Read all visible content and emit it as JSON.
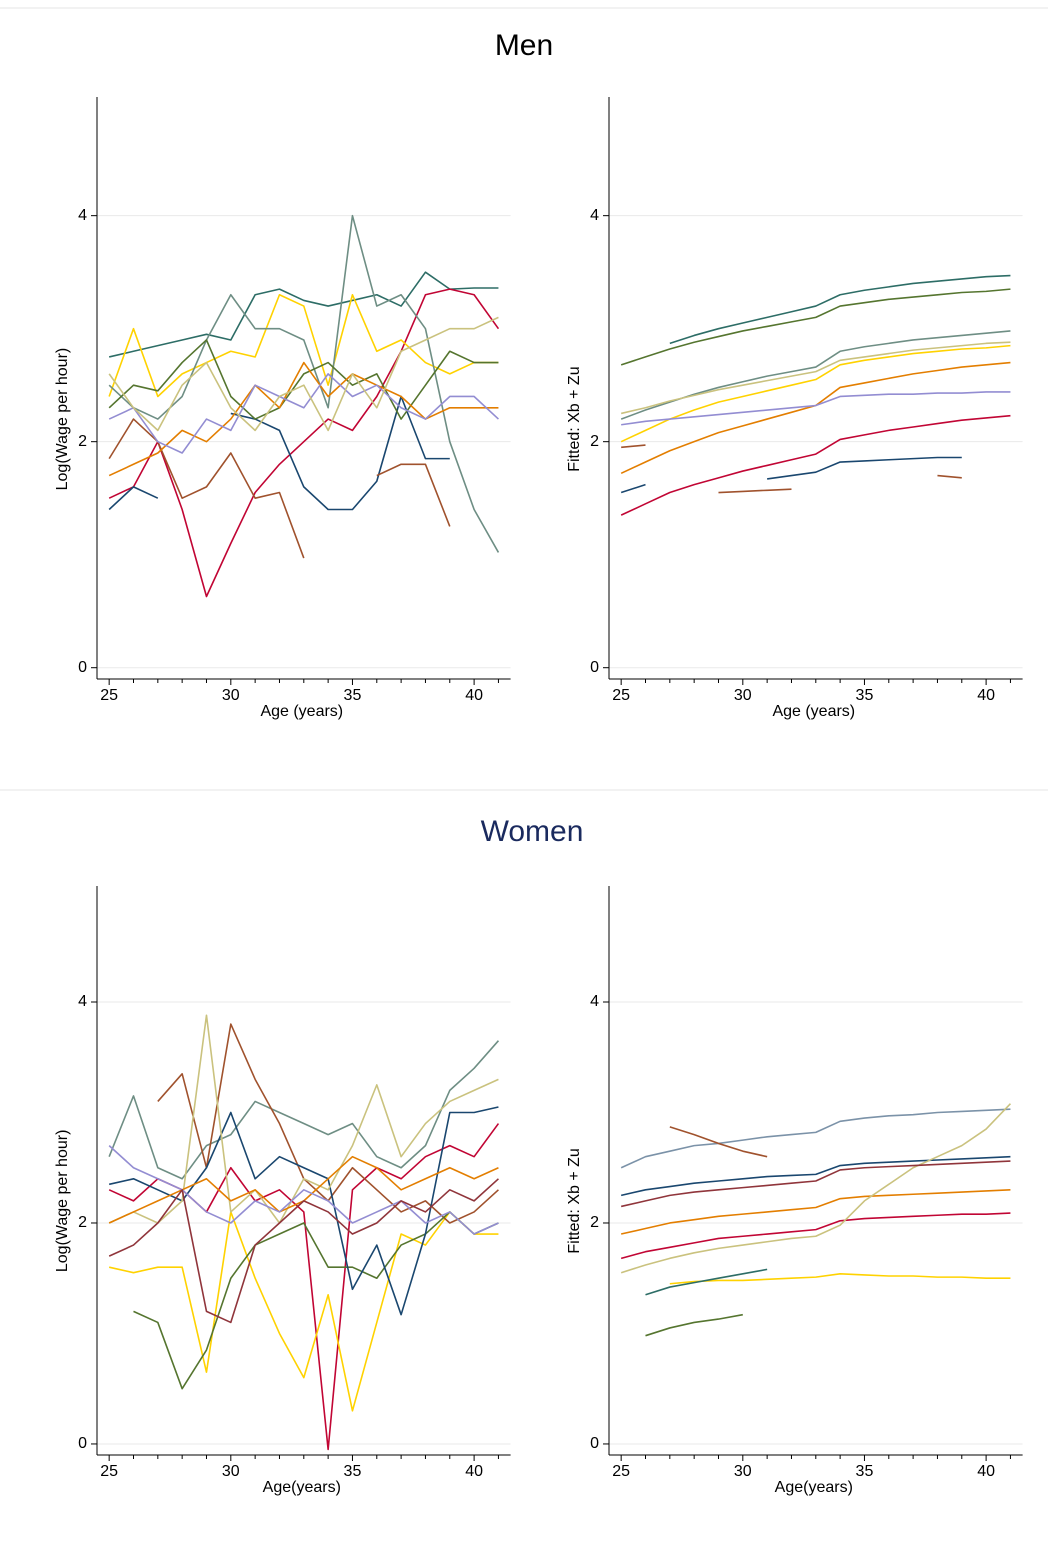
{
  "sections": [
    {
      "title": "Men"
    },
    {
      "title": "Women"
    }
  ],
  "chart_data": [
    {
      "type": "line",
      "x_label": "Age (years)",
      "y_label": "Log(Wage per hour)",
      "x": [
        25,
        26,
        27,
        28,
        29,
        30,
        31,
        32,
        33,
        34,
        35,
        36,
        37,
        38,
        39,
        40,
        41
      ],
      "xlim": [
        24.5,
        41.5
      ],
      "xticks": [
        25,
        30,
        35,
        40
      ],
      "xminorticks": [
        26,
        27,
        28,
        29,
        31,
        32,
        33,
        34,
        36,
        37,
        38,
        39,
        41
      ],
      "ylim": [
        -0.1,
        5.05
      ],
      "yticks": [
        0,
        2,
        4
      ],
      "grid": true,
      "series": [
        {
          "color": "#2d6d66",
          "values": [
            2.75,
            2.8,
            2.85,
            2.9,
            2.95,
            2.9,
            3.3,
            3.35,
            3.25,
            3.2,
            3.25,
            3.3,
            3.2,
            3.5,
            3.35,
            3.36,
            3.36
          ]
        },
        {
          "color": "#c10534",
          "values": [
            1.5,
            1.6,
            2.0,
            1.4,
            0.63,
            1.1,
            1.55,
            1.8,
            2.0,
            2.2,
            2.1,
            2.4,
            2.8,
            3.3,
            3.35,
            3.3,
            3.0
          ]
        },
        {
          "color": "#ffd200",
          "values": [
            2.4,
            3.0,
            2.4,
            2.6,
            2.7,
            2.8,
            2.75,
            3.3,
            3.2,
            2.5,
            3.3,
            2.8,
            2.9,
            2.7,
            2.6,
            2.7,
            2.7
          ]
        },
        {
          "color": "#6e8e84",
          "values": [
            2.5,
            2.3,
            2.2,
            2.4,
            2.9,
            3.3,
            3.0,
            3.0,
            2.9,
            2.3,
            4.0,
            3.2,
            3.3,
            3.0,
            2.0,
            1.4,
            1.02
          ]
        },
        {
          "color": "#1a476f",
          "values": [
            1.4,
            1.6,
            1.5,
            null,
            null,
            2.25,
            2.2,
            2.1,
            1.6,
            1.4,
            1.4,
            1.65,
            2.4,
            1.85,
            1.85,
            null,
            null
          ]
        },
        {
          "color": "#a0522d",
          "values": [
            1.85,
            2.2,
            2.0,
            1.5,
            1.6,
            1.9,
            1.5,
            1.55,
            0.97,
            null,
            null,
            1.7,
            1.8,
            1.8,
            1.25,
            null,
            null
          ]
        },
        {
          "color": "#55752f",
          "values": [
            2.3,
            2.5,
            2.45,
            2.7,
            2.9,
            2.4,
            2.2,
            2.3,
            2.6,
            2.7,
            2.5,
            2.6,
            2.2,
            2.5,
            2.8,
            2.7,
            2.7
          ]
        },
        {
          "color": "#e37e00",
          "values": [
            1.7,
            1.8,
            1.9,
            2.1,
            2.0,
            2.2,
            2.5,
            2.3,
            2.7,
            2.4,
            2.6,
            2.5,
            2.4,
            2.2,
            2.3,
            2.3,
            2.3
          ]
        },
        {
          "color": "#938dd2",
          "values": [
            2.2,
            2.3,
            2.0,
            1.9,
            2.2,
            2.1,
            2.5,
            2.4,
            2.3,
            2.6,
            2.4,
            2.5,
            2.3,
            2.2,
            2.4,
            2.4,
            2.2
          ]
        },
        {
          "color": "#cac27e",
          "values": [
            2.6,
            2.3,
            2.1,
            2.5,
            2.7,
            2.3,
            2.1,
            2.4,
            2.5,
            2.1,
            2.6,
            2.3,
            2.8,
            2.9,
            3.0,
            3.0,
            3.1
          ]
        }
      ]
    },
    {
      "type": "line",
      "x_label": "Age (years)",
      "y_label": "Fitted: Xb + Zu",
      "x": [
        25,
        26,
        27,
        28,
        29,
        30,
        31,
        32,
        33,
        34,
        35,
        36,
        37,
        38,
        39,
        40,
        41
      ],
      "xlim": [
        24.5,
        41.5
      ],
      "xticks": [
        25,
        30,
        35,
        40
      ],
      "xminorticks": [
        26,
        27,
        28,
        29,
        31,
        32,
        33,
        34,
        36,
        37,
        38,
        39,
        41
      ],
      "ylim": [
        -0.1,
        5.05
      ],
      "yticks": [
        0,
        2,
        4
      ],
      "grid": true,
      "series": [
        {
          "color": "#2d6d66",
          "values": [
            null,
            null,
            2.87,
            2.94,
            3.0,
            3.05,
            3.1,
            3.15,
            3.2,
            3.3,
            3.34,
            3.37,
            3.4,
            3.42,
            3.44,
            3.46,
            3.47
          ]
        },
        {
          "color": "#c10534",
          "values": [
            1.35,
            1.45,
            1.55,
            1.62,
            1.68,
            1.74,
            1.79,
            1.84,
            1.89,
            2.02,
            2.06,
            2.1,
            2.13,
            2.16,
            2.19,
            2.21,
            2.23
          ]
        },
        {
          "color": "#ffd200",
          "values": [
            2.0,
            2.1,
            2.2,
            2.28,
            2.35,
            2.4,
            2.45,
            2.5,
            2.55,
            2.68,
            2.72,
            2.75,
            2.78,
            2.8,
            2.82,
            2.83,
            2.85
          ]
        },
        {
          "color": "#6e8e84",
          "values": [
            2.2,
            2.28,
            2.35,
            2.42,
            2.48,
            2.53,
            2.58,
            2.62,
            2.66,
            2.8,
            2.84,
            2.87,
            2.9,
            2.92,
            2.94,
            2.96,
            2.98
          ]
        },
        {
          "color": "#1a476f",
          "values": [
            1.55,
            1.62,
            null,
            null,
            null,
            null,
            1.67,
            1.7,
            1.73,
            1.82,
            1.83,
            1.84,
            1.85,
            1.86,
            1.86,
            null,
            null
          ]
        },
        {
          "color": "#a0522d",
          "values": [
            1.95,
            1.97,
            null,
            null,
            1.55,
            1.56,
            1.57,
            1.58,
            null,
            null,
            null,
            null,
            null,
            1.7,
            1.68,
            null,
            null
          ]
        },
        {
          "color": "#55752f",
          "values": [
            2.68,
            2.75,
            2.82,
            2.88,
            2.93,
            2.98,
            3.02,
            3.06,
            3.1,
            3.2,
            3.23,
            3.26,
            3.28,
            3.3,
            3.32,
            3.33,
            3.35
          ]
        },
        {
          "color": "#e37e00",
          "values": [
            1.72,
            1.82,
            1.92,
            2.0,
            2.08,
            2.14,
            2.2,
            2.26,
            2.32,
            2.48,
            2.52,
            2.56,
            2.6,
            2.63,
            2.66,
            2.68,
            2.7
          ]
        },
        {
          "color": "#938dd2",
          "values": [
            2.15,
            2.18,
            2.2,
            2.22,
            2.24,
            2.26,
            2.28,
            2.3,
            2.32,
            2.4,
            2.41,
            2.42,
            2.42,
            2.43,
            2.43,
            2.44,
            2.44
          ]
        },
        {
          "color": "#cac27e",
          "values": [
            2.25,
            2.3,
            2.36,
            2.41,
            2.46,
            2.5,
            2.54,
            2.58,
            2.62,
            2.72,
            2.75,
            2.78,
            2.81,
            2.83,
            2.85,
            2.87,
            2.88
          ]
        }
      ]
    },
    {
      "type": "line",
      "x_label": "Age(years)",
      "y_label": "Log(Wage per hour)",
      "x": [
        25,
        26,
        27,
        28,
        29,
        30,
        31,
        32,
        33,
        34,
        35,
        36,
        37,
        38,
        39,
        40,
        41
      ],
      "xlim": [
        24.5,
        41.5
      ],
      "xticks": [
        25,
        30,
        35,
        40
      ],
      "xminorticks": [
        26,
        27,
        28,
        29,
        31,
        32,
        33,
        34,
        36,
        37,
        38,
        39,
        41
      ],
      "ylim": [
        -0.1,
        5.05
      ],
      "yticks": [
        0,
        2,
        4
      ],
      "grid": true,
      "series": [
        {
          "color": "#6e8e84",
          "values": [
            2.6,
            3.15,
            2.5,
            2.4,
            2.7,
            2.8,
            3.1,
            3.0,
            2.9,
            2.8,
            2.9,
            2.6,
            2.5,
            2.7,
            3.2,
            3.4,
            3.65
          ]
        },
        {
          "color": "#c10534",
          "values": [
            2.3,
            2.2,
            2.4,
            2.3,
            2.1,
            2.5,
            2.2,
            2.3,
            2.1,
            -0.05,
            2.3,
            2.5,
            2.4,
            2.6,
            2.7,
            2.6,
            2.9
          ]
        },
        {
          "color": "#ffd200",
          "values": [
            1.6,
            1.55,
            1.6,
            1.6,
            0.65,
            2.1,
            1.5,
            1.0,
            0.6,
            1.35,
            0.3,
            1.1,
            1.9,
            1.8,
            2.1,
            1.9,
            1.9
          ]
        },
        {
          "color": "#a0522d",
          "values": [
            null,
            null,
            3.1,
            3.35,
            2.5,
            3.8,
            3.3,
            2.9,
            2.4,
            2.2,
            2.5,
            2.3,
            2.1,
            2.2,
            2.0,
            2.1,
            2.3
          ]
        },
        {
          "color": "#55752f",
          "values": [
            null,
            1.2,
            1.1,
            0.5,
            0.85,
            1.5,
            1.8,
            1.9,
            2.0,
            1.6,
            1.6,
            1.5,
            1.8,
            1.9,
            2.1,
            1.9,
            2.0
          ]
        },
        {
          "color": "#1a476f",
          "values": [
            2.35,
            2.4,
            2.3,
            2.2,
            2.5,
            3.0,
            2.4,
            2.6,
            2.5,
            2.4,
            1.4,
            1.8,
            1.17,
            1.9,
            3.0,
            3.0,
            3.05
          ]
        },
        {
          "color": "#cac27e",
          "values": [
            2.0,
            2.1,
            2.0,
            2.2,
            3.88,
            2.1,
            2.3,
            2.0,
            2.4,
            2.3,
            2.7,
            3.25,
            2.6,
            2.9,
            3.1,
            3.2,
            3.3
          ]
        },
        {
          "color": "#e37e00",
          "values": [
            2.0,
            2.1,
            2.2,
            2.3,
            2.4,
            2.2,
            2.3,
            2.1,
            2.2,
            2.4,
            2.6,
            2.5,
            2.3,
            2.4,
            2.5,
            2.4,
            2.5
          ]
        },
        {
          "color": "#938dd2",
          "values": [
            2.7,
            2.5,
            2.4,
            2.3,
            2.1,
            2.0,
            2.2,
            2.1,
            2.3,
            2.2,
            2.0,
            2.1,
            2.2,
            2.0,
            2.1,
            1.9,
            2.0
          ]
        },
        {
          "color": "#90353b",
          "values": [
            1.7,
            1.8,
            2.0,
            2.3,
            1.2,
            1.1,
            1.8,
            2.0,
            2.2,
            2.1,
            1.9,
            2.0,
            2.2,
            2.1,
            2.3,
            2.2,
            2.4
          ]
        }
      ]
    },
    {
      "type": "line",
      "x_label": "Age(years)",
      "y_label": "Fitted: Xb + Zu",
      "x": [
        25,
        26,
        27,
        28,
        29,
        30,
        31,
        32,
        33,
        34,
        35,
        36,
        37,
        38,
        39,
        40,
        41
      ],
      "xlim": [
        24.5,
        41.5
      ],
      "xticks": [
        25,
        30,
        35,
        40
      ],
      "xminorticks": [
        26,
        27,
        28,
        29,
        31,
        32,
        33,
        34,
        36,
        37,
        38,
        39,
        41
      ],
      "ylim": [
        -0.1,
        5.05
      ],
      "yticks": [
        0,
        2,
        4
      ],
      "grid": true,
      "series": [
        {
          "color": "#7b92a8",
          "values": [
            2.5,
            2.6,
            2.65,
            2.7,
            2.72,
            2.75,
            2.78,
            2.8,
            2.82,
            2.92,
            2.95,
            2.97,
            2.98,
            3.0,
            3.01,
            3.02,
            3.03
          ]
        },
        {
          "color": "#ffd200",
          "values": [
            null,
            null,
            1.45,
            1.47,
            1.48,
            1.48,
            1.49,
            1.5,
            1.51,
            1.54,
            1.53,
            1.52,
            1.52,
            1.51,
            1.51,
            1.5,
            1.5
          ]
        },
        {
          "color": "#55752f",
          "values": [
            null,
            0.98,
            1.05,
            1.1,
            1.13,
            1.17,
            null,
            null,
            null,
            null,
            null,
            null,
            null,
            null,
            null,
            null,
            null
          ]
        },
        {
          "color": "#c10534",
          "values": [
            1.68,
            1.74,
            1.78,
            1.82,
            1.86,
            1.88,
            1.9,
            1.92,
            1.94,
            2.02,
            2.04,
            2.05,
            2.06,
            2.07,
            2.08,
            2.08,
            2.09
          ]
        },
        {
          "color": "#1a476f",
          "values": [
            2.25,
            2.3,
            2.33,
            2.36,
            2.38,
            2.4,
            2.42,
            2.43,
            2.44,
            2.52,
            2.54,
            2.55,
            2.56,
            2.57,
            2.58,
            2.59,
            2.6
          ]
        },
        {
          "color": "#e37e00",
          "values": [
            1.9,
            1.95,
            2.0,
            2.03,
            2.06,
            2.08,
            2.1,
            2.12,
            2.14,
            2.22,
            2.24,
            2.25,
            2.26,
            2.27,
            2.28,
            2.29,
            2.3
          ]
        },
        {
          "color": "#2d6d66",
          "values": [
            null,
            1.35,
            1.42,
            1.46,
            1.5,
            1.54,
            1.58,
            null,
            null,
            null,
            null,
            null,
            null,
            null,
            null,
            null,
            null
          ]
        },
        {
          "color": "#a0522d",
          "values": [
            null,
            null,
            2.87,
            2.8,
            2.72,
            2.65,
            2.6,
            null,
            null,
            null,
            null,
            null,
            null,
            null,
            null,
            null,
            null
          ]
        },
        {
          "color": "#cac27e",
          "values": [
            1.55,
            1.62,
            1.68,
            1.73,
            1.77,
            1.8,
            1.83,
            1.86,
            1.88,
            1.98,
            2.2,
            2.35,
            2.5,
            2.6,
            2.7,
            2.85,
            3.08
          ]
        },
        {
          "color": "#90353b",
          "values": [
            2.15,
            2.2,
            2.25,
            2.28,
            2.3,
            2.32,
            2.34,
            2.36,
            2.38,
            2.48,
            2.5,
            2.51,
            2.52,
            2.53,
            2.54,
            2.55,
            2.56
          ]
        }
      ]
    }
  ]
}
